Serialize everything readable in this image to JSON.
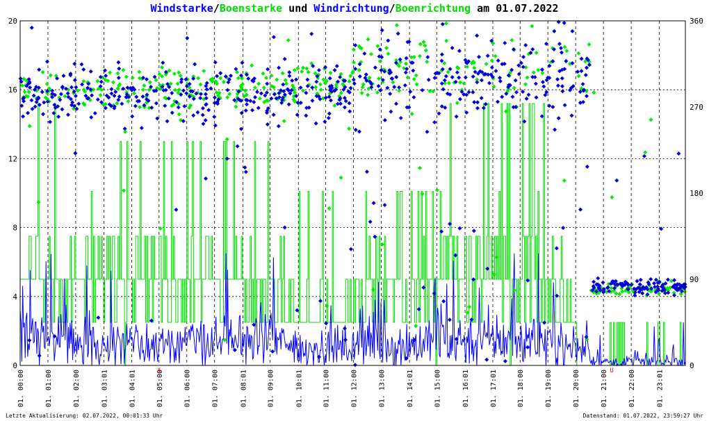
{
  "colors": {
    "wind": "#0000ff",
    "gust": "#00dd00",
    "winddir": "#0000dd",
    "gustdir": "#00ee00",
    "title_text": "#000000",
    "marker": "#ff0000",
    "grid": "#000000"
  },
  "title": {
    "part1": "Windstarke",
    "sep1": "/",
    "part2": "Boenstarke",
    "part3": " und ",
    "part4": "Windrichtung",
    "sep2": "/",
    "part5": "Boenrichtung",
    "part6": " am 01.07.2022"
  },
  "footer": {
    "left": "Letzte Aktualisierung: 02.07.2022, 00:01:33 Uhr",
    "right": "Datenstand: 01.07.2022, 23:59:27 Uhr"
  },
  "chart_data": {
    "type": "line",
    "title": "Windstarke/Boenstarke und Windrichtung/Boenrichtung am 01.07.2022",
    "x_range_hours": [
      0,
      23.95
    ],
    "x_tick_labels": [
      "01. 00:00",
      "01. 01:00",
      "01. 02:00",
      "01. 03:01",
      "01. 04:01",
      "01. 05:00",
      "01. 06:00",
      "01. 07:00",
      "01. 08:01",
      "01. 09:00",
      "01. 10:01",
      "01. 11:00",
      "01. 12:00",
      "01. 13:00",
      "01. 14:01",
      "01. 15:00",
      "01. 16:01",
      "01. 17:01",
      "01. 18:00",
      "01. 19:00",
      "01. 20:00",
      "01. 21:00",
      "01. 22:00",
      "01. 23:01"
    ],
    "x_tick_hours": [
      0,
      1,
      2,
      3.017,
      4.017,
      5,
      6,
      7,
      8.017,
      9,
      10.017,
      11,
      12,
      13,
      14.017,
      15,
      16.017,
      17.017,
      18,
      19,
      20,
      21,
      22,
      23.017
    ],
    "y_left": {
      "range": [
        0,
        20
      ],
      "ticks": [
        0,
        4,
        8,
        12,
        16,
        20
      ]
    },
    "y_right": {
      "range": [
        0,
        360
      ],
      "ticks": [
        0,
        90,
        180,
        270,
        360
      ]
    },
    "markers": [
      {
        "label": "A",
        "hour": 5.0
      },
      {
        "label": "U",
        "hour": 21.3
      }
    ],
    "grid": true,
    "series": [
      {
        "name": "Windstarke",
        "axis": "left",
        "style": "line",
        "color_key": "wind",
        "segments": [
          {
            "from": 0,
            "to": 2.5,
            "mean": 1.6,
            "spread": 2.6,
            "max": 6.5
          },
          {
            "from": 2.5,
            "to": 5.0,
            "mean": 1.2,
            "spread": 2.2,
            "max": 5.5
          },
          {
            "from": 5.0,
            "to": 7.0,
            "mean": 1.4,
            "spread": 2.4,
            "max": 5.0
          },
          {
            "from": 7.0,
            "to": 9.5,
            "mean": 1.5,
            "spread": 2.5,
            "max": 6.5
          },
          {
            "from": 9.5,
            "to": 12.0,
            "mean": 1.0,
            "spread": 2.0,
            "max": 4.5
          },
          {
            "from": 12.0,
            "to": 15.0,
            "mean": 1.2,
            "spread": 2.4,
            "max": 5.2
          },
          {
            "from": 15.0,
            "to": 19.5,
            "mean": 1.5,
            "spread": 2.6,
            "max": 6.5
          },
          {
            "from": 19.5,
            "to": 20.5,
            "mean": 1.0,
            "spread": 1.6,
            "max": 3.0
          },
          {
            "from": 20.5,
            "to": 24.0,
            "mean": 0.2,
            "spread": 0.6,
            "max": 3.2
          }
        ]
      },
      {
        "name": "Boenstarke",
        "axis": "left",
        "style": "step",
        "color_key": "gust",
        "levels": [
          0,
          2.5,
          5.0,
          7.5,
          10.1,
          13.0,
          15.2
        ],
        "segments": [
          {
            "from": 0,
            "to": 2.5,
            "mean": 5.0,
            "spread": 4.5,
            "max": 15.2
          },
          {
            "from": 2.5,
            "to": 5.0,
            "mean": 5.5,
            "spread": 5.0,
            "max": 13.0
          },
          {
            "from": 5.0,
            "to": 7.0,
            "mean": 5.0,
            "spread": 5.0,
            "max": 13.0
          },
          {
            "from": 7.0,
            "to": 9.5,
            "mean": 4.5,
            "spread": 4.5,
            "max": 13.0
          },
          {
            "from": 9.5,
            "to": 12.0,
            "mean": 3.0,
            "spread": 3.0,
            "max": 10.1
          },
          {
            "from": 12.0,
            "to": 15.0,
            "mean": 4.0,
            "spread": 4.5,
            "max": 10.1
          },
          {
            "from": 15.0,
            "to": 19.5,
            "mean": 5.5,
            "spread": 6.0,
            "max": 15.2
          },
          {
            "from": 19.5,
            "to": 20.0,
            "mean": 3.0,
            "spread": 2.5,
            "max": 5.0
          },
          {
            "from": 20.0,
            "to": 24.0,
            "mean": 0.3,
            "spread": 1.0,
            "max": 2.5
          }
        ]
      },
      {
        "name": "Windrichtung",
        "axis": "right",
        "style": "scatter",
        "color_key": "winddir",
        "segments": [
          {
            "from": 0,
            "to": 12.0,
            "center": 285,
            "spread": 30,
            "outlier_rate": 0.12
          },
          {
            "from": 12.0,
            "to": 20.5,
            "center": 300,
            "spread": 40,
            "outlier_rate": 0.18
          },
          {
            "from": 20.5,
            "to": 24.0,
            "center": 82,
            "spread": 8,
            "outlier_rate": 0.05
          }
        ]
      },
      {
        "name": "Boenrichtung",
        "axis": "right",
        "style": "scatter",
        "color_key": "gustdir",
        "segments": [
          {
            "from": 0,
            "to": 12.0,
            "center": 290,
            "spread": 25,
            "outlier_rate": 0.08
          },
          {
            "from": 12.0,
            "to": 20.5,
            "center": 310,
            "spread": 35,
            "outlier_rate": 0.12
          },
          {
            "from": 20.5,
            "to": 24.0,
            "center": 80,
            "spread": 6,
            "outlier_rate": 0.04
          }
        ]
      }
    ]
  }
}
